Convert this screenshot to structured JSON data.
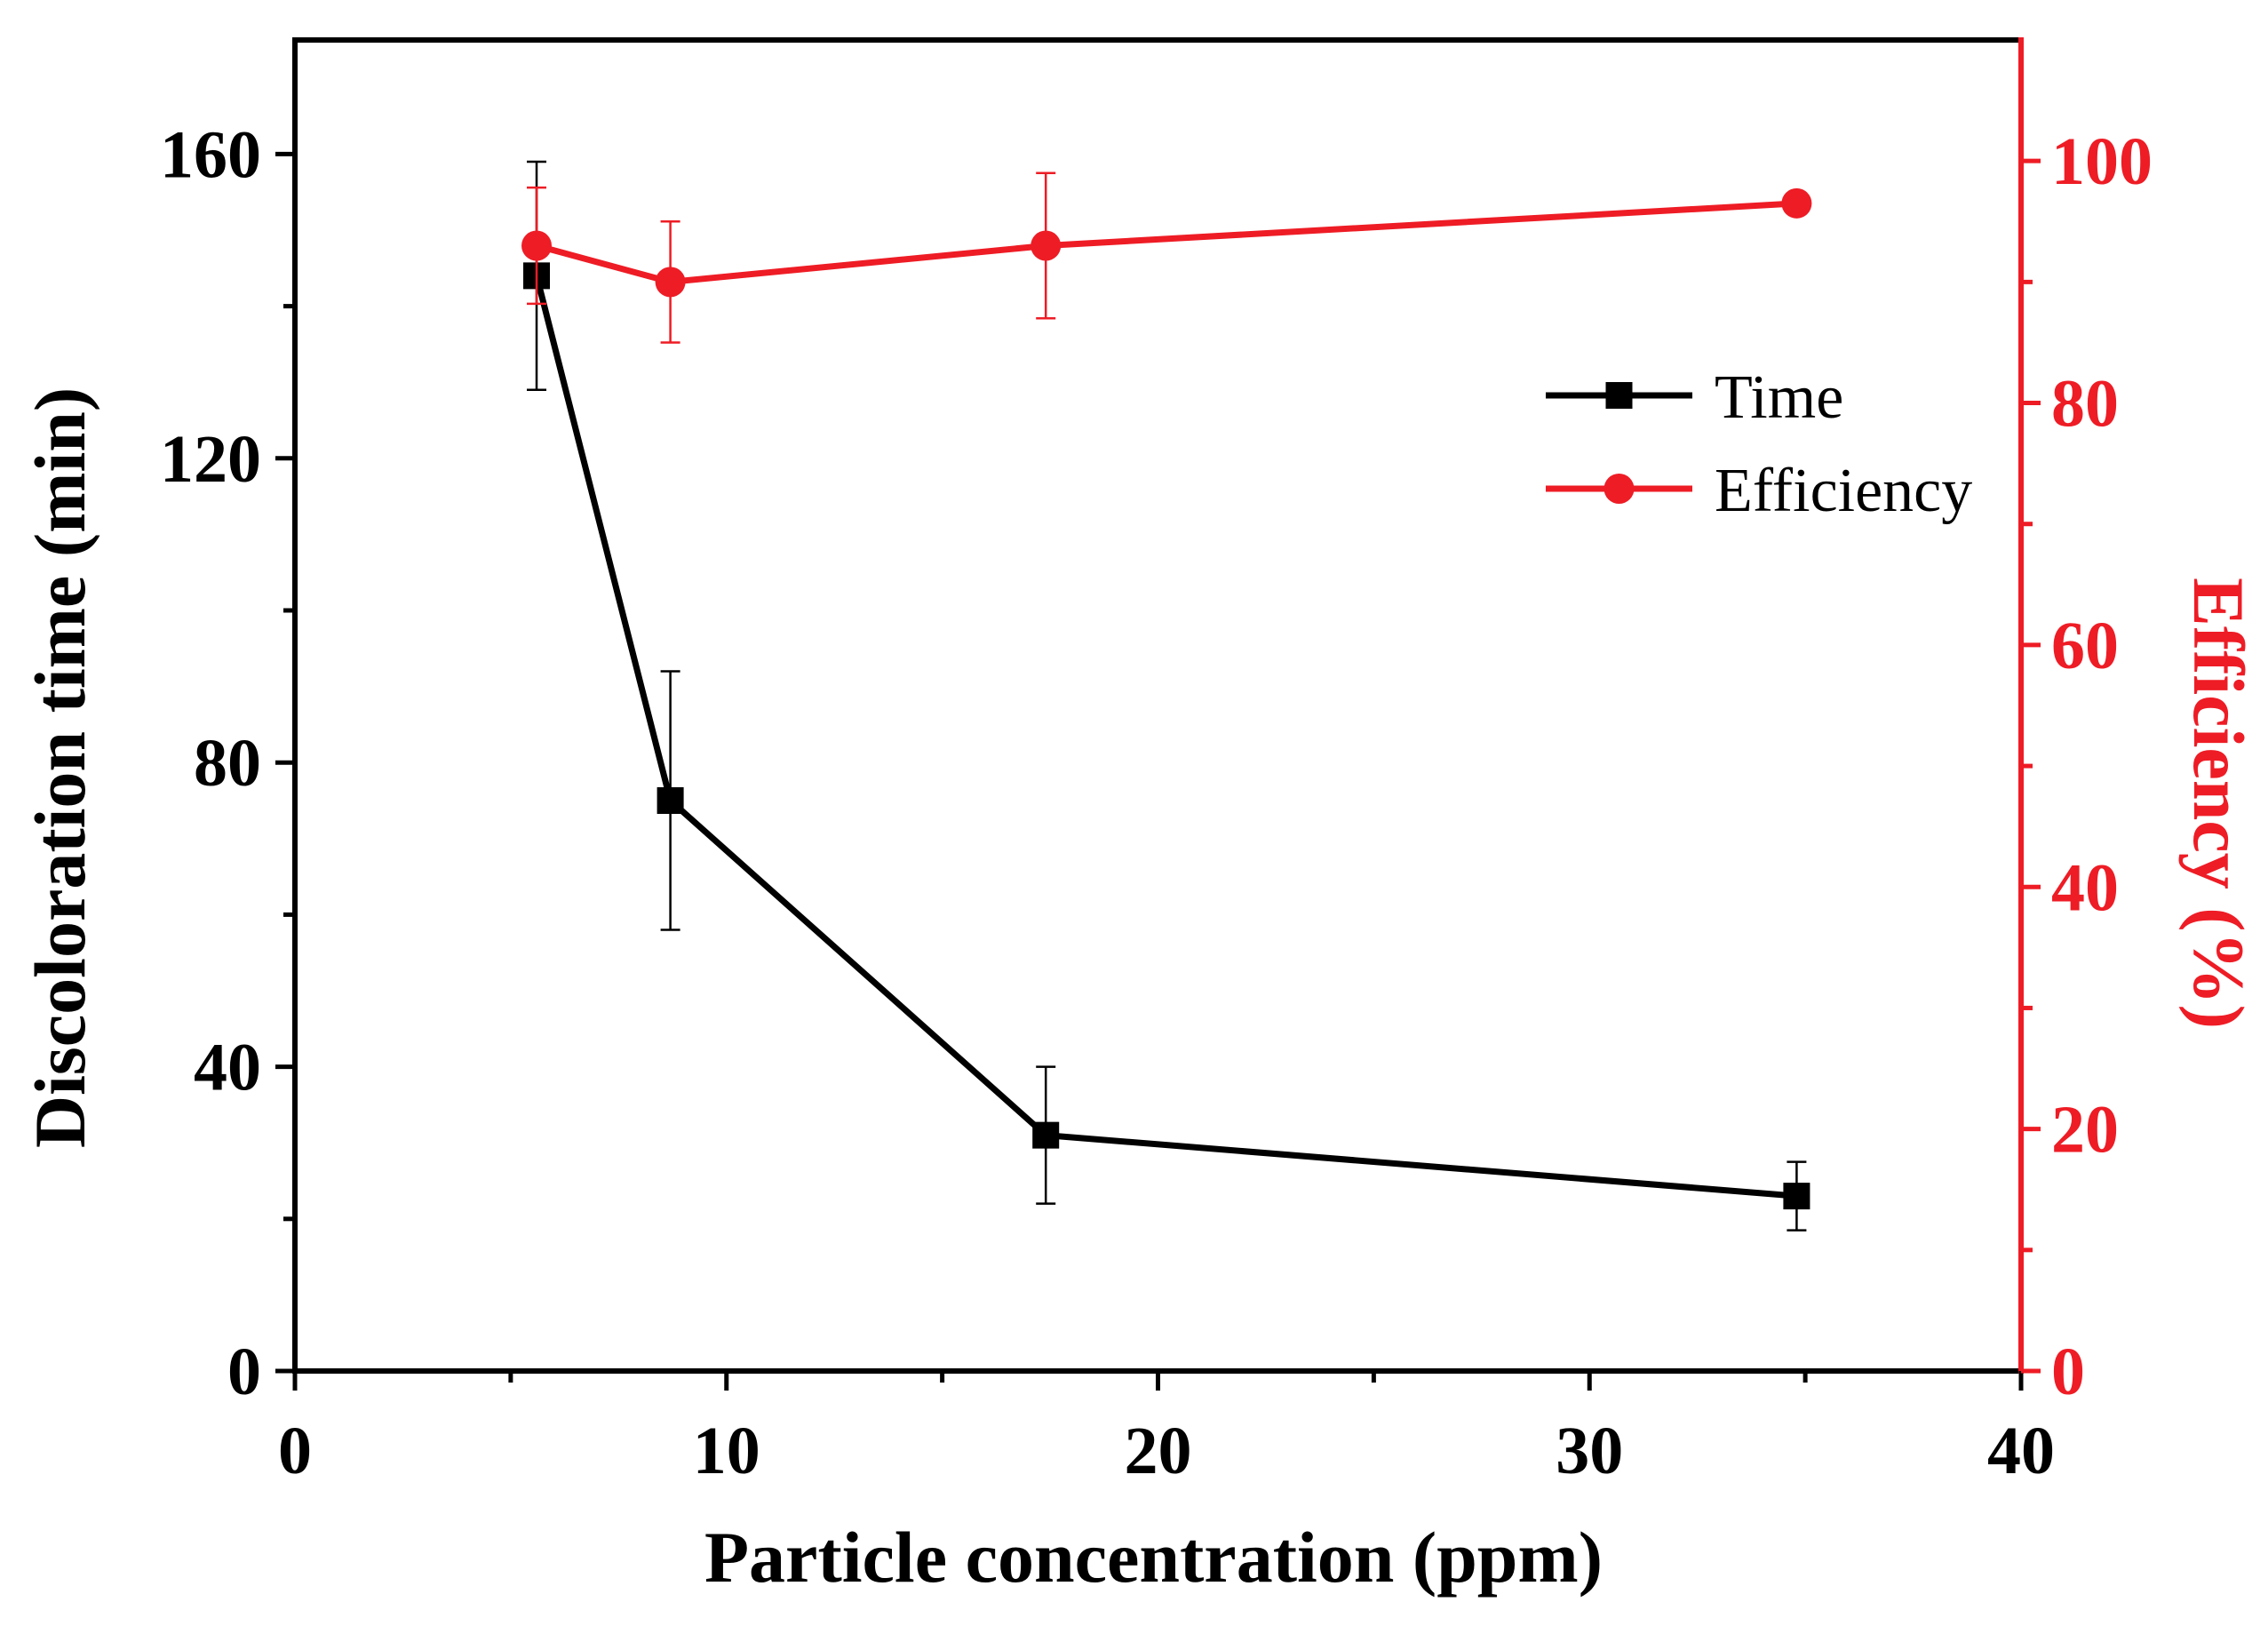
{
  "chart_data": {
    "type": "line",
    "title": "",
    "xlabel": "Particle concentration (ppm)",
    "ylabel_left": "Discoloration time (min)",
    "ylabel_right": "Efficiency (%)",
    "xlim": [
      0,
      40
    ],
    "ylim_left": [
      0,
      175
    ],
    "ylim_right": [
      0,
      110
    ],
    "x_ticks": [
      0,
      10,
      20,
      30,
      40
    ],
    "x_tick_labels": [
      "0",
      "10",
      "20",
      "30",
      "40"
    ],
    "y_left_ticks": [
      0,
      40,
      80,
      120,
      160
    ],
    "y_left_tick_labels": [
      "0",
      "40",
      "80",
      "120",
      "160"
    ],
    "y_right_ticks": [
      0,
      20,
      40,
      60,
      80,
      100
    ],
    "y_right_tick_labels": [
      "0",
      "20",
      "40",
      "60",
      "80",
      "100"
    ],
    "grid": false,
    "legend_position": "upper-right",
    "colors": {
      "time": "#000000",
      "efficiency": "#ee1c25"
    },
    "series": [
      {
        "name": "Time",
        "axis": "left",
        "marker": "square",
        "color": "#000000",
        "x": [
          5.6,
          8.7,
          17.4,
          34.8
        ],
        "y": [
          144,
          75,
          31,
          23
        ],
        "error": [
          15,
          17,
          9,
          4.5
        ]
      },
      {
        "name": "Efficiency",
        "axis": "right",
        "marker": "circle",
        "color": "#ee1c25",
        "x": [
          5.6,
          8.7,
          17.4,
          34.8
        ],
        "y": [
          93,
          90,
          93,
          96.5
        ],
        "error": [
          4.8,
          5,
          6,
          0
        ]
      }
    ]
  }
}
